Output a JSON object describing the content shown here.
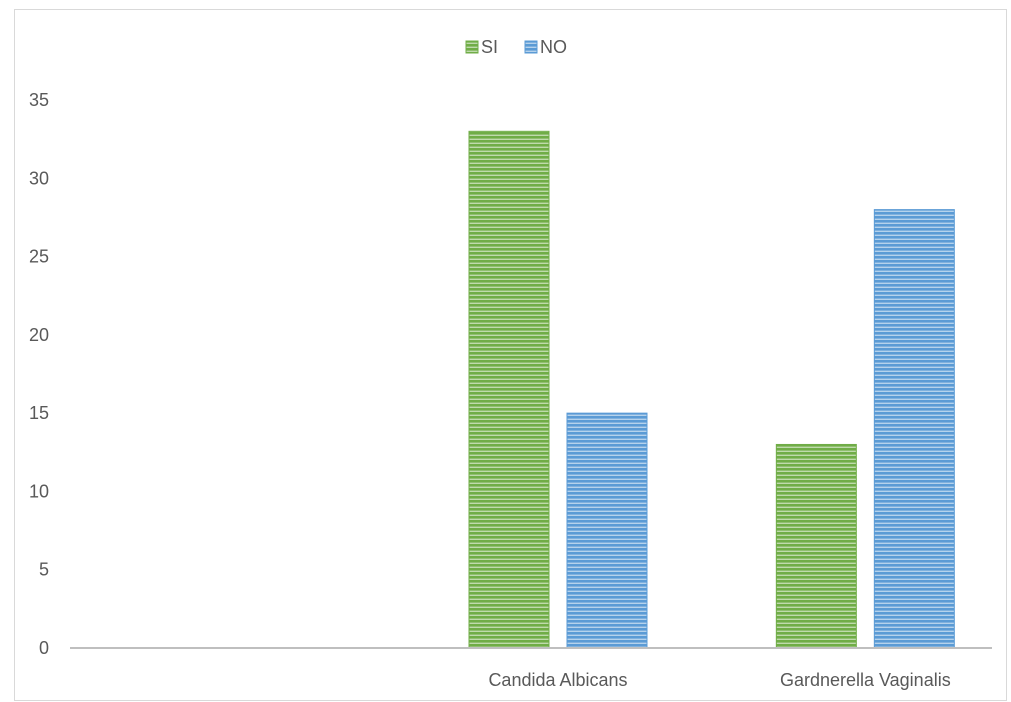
{
  "chart_data": {
    "type": "bar",
    "categories": [
      "",
      "Candida Albicans",
      "Gardnerella Vaginalis"
    ],
    "series": [
      {
        "name": "SI",
        "values": [
          0,
          33,
          13
        ],
        "color": "#70ad47"
      },
      {
        "name": "NO",
        "values": [
          0,
          15,
          28
        ],
        "color": "#5b9bd5"
      }
    ],
    "ylim": [
      0,
      35
    ],
    "yticks": [
      "0",
      "5",
      "10",
      "15",
      "20",
      "25",
      "30",
      "35"
    ],
    "grid": false,
    "legend": "top-center",
    "fill_pattern": "horizontal-stripes"
  }
}
